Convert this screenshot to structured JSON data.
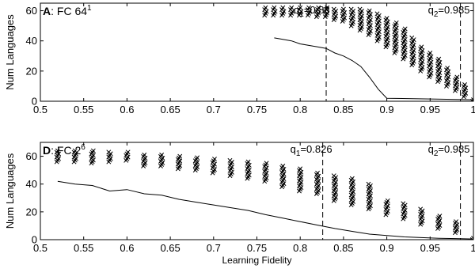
{
  "figure": {
    "axis_color": "#000000",
    "marker_color": "#000000",
    "line_color": "#000000"
  },
  "chart_data": [
    {
      "type": "scatter",
      "panel_tag": "A",
      "panel_title": "FC 64",
      "panel_title_sup": "1",
      "xlabel": "",
      "ylabel": "Num Languages",
      "xlim": [
        0.5,
        1.0
      ],
      "ylim": [
        0,
        65
      ],
      "xticks": [
        0.5,
        0.55,
        0.6,
        0.65,
        0.7,
        0.75,
        0.8,
        0.85,
        0.9,
        0.95,
        1
      ],
      "xtick_labels": [
        "0.5",
        "0.55",
        "0.6",
        "0.65",
        "0.7",
        "0.75",
        "0.8",
        "0.85",
        "0.9",
        "0.95",
        "1"
      ],
      "yticks": [
        0,
        20,
        40,
        60
      ],
      "ytick_labels": [
        "0",
        "20",
        "40",
        "60"
      ],
      "marker": "x",
      "scatter_clusters": [
        {
          "x": 0.76,
          "min": 57,
          "max": 62
        },
        {
          "x": 0.77,
          "min": 57,
          "max": 62
        },
        {
          "x": 0.78,
          "min": 57,
          "max": 62
        },
        {
          "x": 0.79,
          "min": 57,
          "max": 62
        },
        {
          "x": 0.8,
          "min": 57,
          "max": 62
        },
        {
          "x": 0.81,
          "min": 57,
          "max": 62
        },
        {
          "x": 0.82,
          "min": 56,
          "max": 62
        },
        {
          "x": 0.83,
          "min": 56,
          "max": 62
        },
        {
          "x": 0.84,
          "min": 54,
          "max": 61
        },
        {
          "x": 0.85,
          "min": 53,
          "max": 61
        },
        {
          "x": 0.86,
          "min": 50,
          "max": 61
        },
        {
          "x": 0.87,
          "min": 47,
          "max": 61
        },
        {
          "x": 0.88,
          "min": 44,
          "max": 60
        },
        {
          "x": 0.89,
          "min": 40,
          "max": 58
        },
        {
          "x": 0.9,
          "min": 36,
          "max": 55
        },
        {
          "x": 0.91,
          "min": 32,
          "max": 52
        },
        {
          "x": 0.92,
          "min": 28,
          "max": 48
        },
        {
          "x": 0.93,
          "min": 24,
          "max": 42
        },
        {
          "x": 0.94,
          "min": 20,
          "max": 36
        },
        {
          "x": 0.95,
          "min": 16,
          "max": 32
        },
        {
          "x": 0.96,
          "min": 13,
          "max": 28
        },
        {
          "x": 0.97,
          "min": 10,
          "max": 22
        },
        {
          "x": 0.98,
          "min": 7,
          "max": 16
        },
        {
          "x": 0.99,
          "min": 3,
          "max": 11
        },
        {
          "x": 1.0,
          "min": 0,
          "max": 1
        }
      ],
      "line": {
        "x": [
          0.77,
          0.78,
          0.79,
          0.8,
          0.81,
          0.82,
          0.83,
          0.84,
          0.85,
          0.86,
          0.87,
          0.88,
          0.89,
          0.9,
          0.95,
          1.0
        ],
        "y": [
          42,
          41,
          40,
          38,
          37,
          36,
          35,
          32,
          30,
          27,
          23,
          16,
          8,
          2,
          1.5,
          1
        ]
      },
      "vlines": [
        {
          "x": 0.83,
          "label": "q",
          "sub": "1",
          "value": "=0.83"
        },
        {
          "x": 0.985,
          "label": "q",
          "sub": "2",
          "value": "=0.985"
        }
      ],
      "grid": false
    },
    {
      "type": "scatter",
      "panel_tag": "D",
      "panel_title": "FC 2",
      "panel_title_sup": "6",
      "xlabel": "Learning Fidelity",
      "ylabel": "Num Languages",
      "xlim": [
        0.5,
        1.0
      ],
      "ylim": [
        0,
        70
      ],
      "xticks": [
        0.5,
        0.55,
        0.6,
        0.65,
        0.7,
        0.75,
        0.8,
        0.85,
        0.9,
        0.95,
        1
      ],
      "xtick_labels": [
        "0.5",
        "0.55",
        "0.6",
        "0.65",
        "0.7",
        "0.75",
        "0.8",
        "0.85",
        "0.9",
        "0.95",
        "1"
      ],
      "yticks": [
        0,
        20,
        40,
        60
      ],
      "ytick_labels": [
        "0",
        "20",
        "40",
        "60"
      ],
      "marker": "x",
      "scatter_clusters": [
        {
          "x": 0.52,
          "min": 56,
          "max": 64
        },
        {
          "x": 0.54,
          "min": 56,
          "max": 64
        },
        {
          "x": 0.56,
          "min": 55,
          "max": 64
        },
        {
          "x": 0.58,
          "min": 56,
          "max": 63
        },
        {
          "x": 0.6,
          "min": 57,
          "max": 63
        },
        {
          "x": 0.62,
          "min": 53,
          "max": 61
        },
        {
          "x": 0.64,
          "min": 53,
          "max": 61
        },
        {
          "x": 0.66,
          "min": 51,
          "max": 60
        },
        {
          "x": 0.68,
          "min": 50,
          "max": 59
        },
        {
          "x": 0.7,
          "min": 48,
          "max": 58
        },
        {
          "x": 0.72,
          "min": 46,
          "max": 57
        },
        {
          "x": 0.74,
          "min": 44,
          "max": 56
        },
        {
          "x": 0.76,
          "min": 42,
          "max": 55
        },
        {
          "x": 0.78,
          "min": 38,
          "max": 53
        },
        {
          "x": 0.8,
          "min": 35,
          "max": 51
        },
        {
          "x": 0.82,
          "min": 33,
          "max": 48
        },
        {
          "x": 0.84,
          "min": 28,
          "max": 46
        },
        {
          "x": 0.86,
          "min": 25,
          "max": 44
        },
        {
          "x": 0.88,
          "min": 22,
          "max": 40
        },
        {
          "x": 0.9,
          "min": 18,
          "max": 28
        },
        {
          "x": 0.92,
          "min": 15,
          "max": 26
        },
        {
          "x": 0.94,
          "min": 11,
          "max": 22
        },
        {
          "x": 0.96,
          "min": 8,
          "max": 17
        },
        {
          "x": 0.98,
          "min": 5,
          "max": 13
        },
        {
          "x": 1.0,
          "min": 0,
          "max": 1
        }
      ],
      "line": {
        "x": [
          0.52,
          0.54,
          0.56,
          0.58,
          0.6,
          0.62,
          0.64,
          0.66,
          0.68,
          0.7,
          0.72,
          0.74,
          0.76,
          0.78,
          0.8,
          0.82,
          0.84,
          0.86,
          0.88,
          0.9,
          0.92,
          0.94,
          0.96,
          0.98,
          1.0
        ],
        "y": [
          42,
          40,
          39,
          35,
          36,
          33,
          32,
          29,
          27,
          25,
          23,
          21,
          18,
          15.5,
          13,
          10.5,
          8,
          6,
          4,
          3,
          2,
          1.5,
          1,
          0.8,
          0.5
        ]
      },
      "vlines": [
        {
          "x": 0.826,
          "label": "q",
          "sub": "1",
          "value": "=0.826"
        },
        {
          "x": 0.985,
          "label": "q",
          "sub": "2",
          "value": "=0.985"
        }
      ],
      "grid": false
    }
  ]
}
